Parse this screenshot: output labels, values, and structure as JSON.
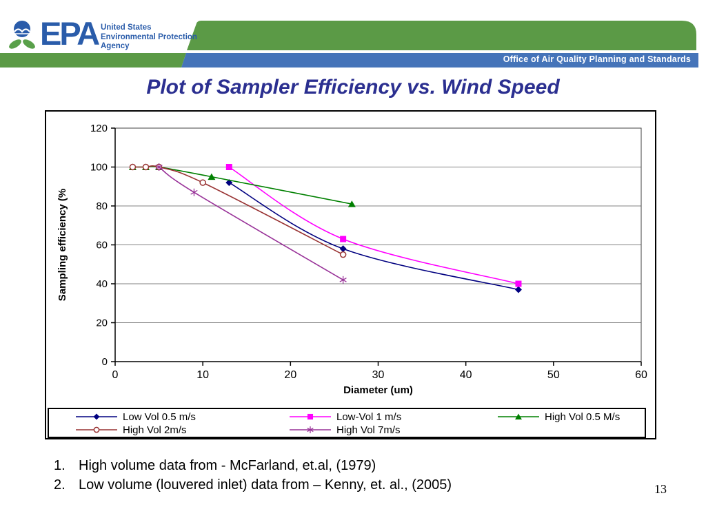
{
  "header": {
    "logo": {
      "epa": "EPA",
      "agency_lines": [
        "United States",
        "Environmental Protection",
        "Agency"
      ]
    },
    "office_label": "Office of Air Quality Planning and Standards",
    "colors": {
      "green": "#5b9a46",
      "blue": "#4574b9",
      "epa_blue": "#2a5caa",
      "leaf_green": "#59a04a"
    }
  },
  "title": "Plot of Sampler Efficiency vs. Wind Speed",
  "title_color": "#2b2f90",
  "chart_data": {
    "type": "line",
    "title": "",
    "xlabel": "Diameter (um)",
    "ylabel": "Sampling efficiency (%",
    "xlim": [
      0,
      60
    ],
    "ylim": [
      0,
      120
    ],
    "x_ticks": [
      0,
      10,
      20,
      30,
      40,
      50,
      60
    ],
    "y_ticks": [
      0,
      20,
      40,
      60,
      80,
      100,
      120
    ],
    "grid": true,
    "legend_position": "bottom",
    "series": [
      {
        "name": "Low Vol 0.5 m/s",
        "color": "#000080",
        "marker": "diamond",
        "points": [
          [
            13,
            92
          ],
          [
            26,
            58
          ],
          [
            46,
            37
          ]
        ]
      },
      {
        "name": "Low-Vol 1 m/s",
        "color": "#ff00ff",
        "marker": "square",
        "points": [
          [
            13,
            100
          ],
          [
            26,
            63
          ],
          [
            46,
            40
          ]
        ]
      },
      {
        "name": "High Vol 0.5 M/s",
        "color": "#008000",
        "marker": "triangle",
        "points": [
          [
            2,
            100
          ],
          [
            3.5,
            100
          ],
          [
            5,
            100
          ],
          [
            11,
            95
          ],
          [
            27,
            81
          ]
        ]
      },
      {
        "name": "High Vol 2m/s",
        "color": "#993333",
        "marker": "circle-open",
        "points": [
          [
            2,
            100
          ],
          [
            3.5,
            100
          ],
          [
            5,
            100
          ],
          [
            10,
            92
          ],
          [
            26,
            55
          ]
        ]
      },
      {
        "name": "High Vol 7m/s",
        "color": "#993399",
        "marker": "asterisk",
        "points": [
          [
            5,
            100
          ],
          [
            9,
            87
          ],
          [
            26,
            42
          ]
        ]
      }
    ]
  },
  "notes": [
    {
      "number": "1.",
      "text": "High volume data from - McFarland, et.al, (1979)"
    },
    {
      "number": "2.",
      "text": "Low volume (louvered inlet) data from – Kenny, et. al., (2005)"
    }
  ],
  "page_number": "13"
}
